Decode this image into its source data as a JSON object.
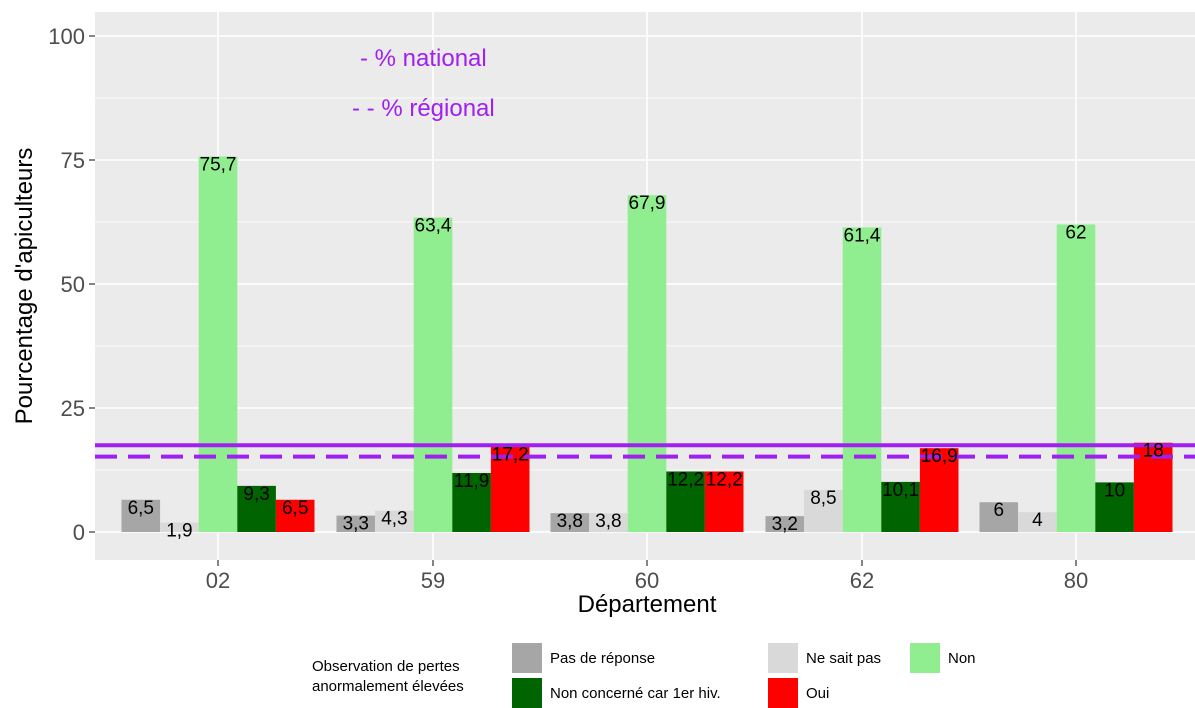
{
  "chart_data": {
    "type": "bar",
    "xlabel": "Département",
    "ylabel": "Pourcentage d'apiculteurs",
    "ylim": [
      0,
      100
    ],
    "y_ticks": [
      0,
      25,
      50,
      75,
      100
    ],
    "y_tick_labels": [
      "0",
      "25",
      "50",
      "75",
      "100"
    ],
    "grid": true,
    "legend_position": "bottom",
    "categories": [
      "02",
      "59",
      "60",
      "62",
      "80"
    ],
    "series": [
      {
        "name": "Pas de réponse",
        "color": "#a6a6a6",
        "values": [
          6.5,
          3.3,
          3.8,
          3.2,
          6
        ],
        "labels": [
          "6,5",
          "3,3",
          "3,8",
          "3,2",
          "6"
        ]
      },
      {
        "name": "Ne sait pas",
        "color": "#d9d9d9",
        "values": [
          1.9,
          4.3,
          3.8,
          8.5,
          4
        ],
        "labels": [
          "1,9",
          "4,3",
          "3,8",
          "8,5",
          "4"
        ]
      },
      {
        "name": "Non",
        "color": "#90ee90",
        "values": [
          75.7,
          63.4,
          67.9,
          61.4,
          62
        ],
        "labels": [
          "75,7",
          "63,4",
          "67,9",
          "61,4",
          "62"
        ]
      },
      {
        "name": "Non concerné car 1er hiv.",
        "color": "#006400",
        "values": [
          9.3,
          11.9,
          12.2,
          10.1,
          10
        ],
        "labels": [
          "9,3",
          "11,9",
          "12,2",
          "10,1",
          "10"
        ]
      },
      {
        "name": "Oui",
        "color": "#ff0000",
        "values": [
          6.5,
          17.2,
          12.2,
          16.9,
          18
        ],
        "labels": [
          "6,5",
          "17,2",
          "12,2",
          "16,9",
          "18"
        ]
      }
    ],
    "reference_lines": [
      {
        "label": "- % national",
        "value": 17.5,
        "style": "solid",
        "color": "#a020f0"
      },
      {
        "label": "- - % régional",
        "value": 15.2,
        "style": "dashed",
        "color": "#a020f0"
      }
    ],
    "legend": {
      "title_line1": "Observation de pertes",
      "title_line2": "anormalement élevées"
    }
  }
}
